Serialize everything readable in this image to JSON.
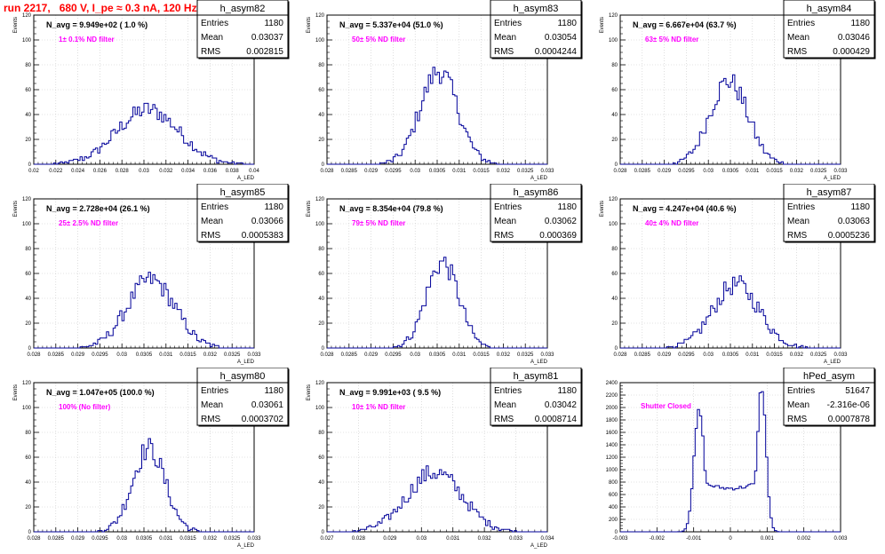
{
  "header": {
    "title": "run 2217,   680 V, I_pe ≈ 0.3 nA, 120 Hz"
  },
  "colors": {
    "title": "#ff0000",
    "histogram": "#000099",
    "annotation": "#ff00ff",
    "grid": "#c8c8c8"
  },
  "chart_data": [
    {
      "type": "histogram",
      "name": "h_asym82",
      "overlay": "N_avg = 9.949e+02 ( 1.0 %)",
      "filter": "1± 0.1% ND filter",
      "stats": {
        "entries": "1180",
        "mean": "0.03037",
        "rms": "0.002815"
      },
      "ylabel": "Events",
      "xlabel": "A_LED",
      "xlim": [
        0.02,
        0.04
      ],
      "ylim": [
        0,
        120
      ],
      "xticks": [
        "0.02",
        "0.022",
        "0.024",
        "0.026",
        "0.028",
        "0.03",
        "0.032",
        "0.034",
        "0.036",
        "0.038",
        "0.04"
      ],
      "yticks": [
        "0",
        "20",
        "40",
        "60",
        "80",
        "100",
        "120"
      ],
      "mean": 0.03037,
      "sigma": 0.0028,
      "peak": 44
    },
    {
      "type": "histogram",
      "name": "h_asym83",
      "overlay": "N_avg = 5.337e+04 (51.0 %)",
      "filter": "50± 5% ND filter",
      "stats": {
        "entries": "1180",
        "mean": "0.03054",
        "rms": "0.0004244"
      },
      "ylabel": "Events",
      "xlabel": "A_LED",
      "xlim": [
        0.028,
        0.033
      ],
      "ylim": [
        0,
        120
      ],
      "xticks": [
        "0.028",
        "0.0285",
        "0.029",
        "0.0295",
        "0.03",
        "0.0305",
        "0.031",
        "0.0315",
        "0.032",
        "0.0325",
        "0.033"
      ],
      "yticks": [
        "0",
        "20",
        "40",
        "60",
        "80",
        "100",
        "120"
      ],
      "mean": 0.03054,
      "sigma": 0.000424,
      "peak": 75
    },
    {
      "type": "histogram",
      "name": "h_asym84",
      "overlay": "N_avg = 6.667e+04 (63.7 %)",
      "filter": "63± 5% ND filter",
      "stats": {
        "entries": "1180",
        "mean": "0.03046",
        "rms": "0.000429"
      },
      "ylabel": "Events",
      "xlabel": "A_LED",
      "xlim": [
        0.028,
        0.033
      ],
      "ylim": [
        0,
        120
      ],
      "xticks": [
        "0.028",
        "0.0285",
        "0.029",
        "0.0295",
        "0.03",
        "0.0305",
        "0.031",
        "0.0315",
        "0.032",
        "0.0325",
        "0.033"
      ],
      "yticks": [
        "0",
        "20",
        "40",
        "60",
        "80",
        "100",
        "120"
      ],
      "mean": 0.03046,
      "sigma": 0.000429,
      "peak": 67
    },
    {
      "type": "histogram",
      "name": "h_asym85",
      "overlay": "N_avg = 2.728e+04 (26.1 %)",
      "filter": "25± 2.5% ND filter",
      "stats": {
        "entries": "1180",
        "mean": "0.03066",
        "rms": "0.0005383"
      },
      "ylabel": "Events",
      "xlabel": "A_LED",
      "xlim": [
        0.028,
        0.033
      ],
      "ylim": [
        0,
        120
      ],
      "xticks": [
        "0.028",
        "0.0285",
        "0.029",
        "0.0295",
        "0.03",
        "0.0305",
        "0.031",
        "0.0315",
        "0.032",
        "0.0325",
        "0.033"
      ],
      "yticks": [
        "0",
        "20",
        "40",
        "60",
        "80",
        "100",
        "120"
      ],
      "mean": 0.03066,
      "sigma": 0.000538,
      "peak": 55
    },
    {
      "type": "histogram",
      "name": "h_asym86",
      "overlay": "N_avg = 8.354e+04 (79.8 %)",
      "filter": "79± 5% ND filter",
      "stats": {
        "entries": "1180",
        "mean": "0.03062",
        "rms": "0.000369"
      },
      "ylabel": "Events",
      "xlabel": "A_LED",
      "xlim": [
        0.028,
        0.033
      ],
      "ylim": [
        0,
        120
      ],
      "xticks": [
        "0.028",
        "0.0285",
        "0.029",
        "0.0295",
        "0.03",
        "0.0305",
        "0.031",
        "0.0315",
        "0.032",
        "0.0325",
        "0.033"
      ],
      "yticks": [
        "0",
        "20",
        "40",
        "60",
        "80",
        "100",
        "120"
      ],
      "mean": 0.03062,
      "sigma": 0.000369,
      "peak": 69
    },
    {
      "type": "histogram",
      "name": "h_asym87",
      "overlay": "N_avg = 4.247e+04 (40.6 %)",
      "filter": "40± 4% ND filter",
      "stats": {
        "entries": "1180",
        "mean": "0.03063",
        "rms": "0.0005236"
      },
      "ylabel": "Events",
      "xlabel": "A_LED",
      "xlim": [
        0.028,
        0.033
      ],
      "ylim": [
        0,
        120
      ],
      "xticks": [
        "0.028",
        "0.0285",
        "0.029",
        "0.0295",
        "0.03",
        "0.0305",
        "0.031",
        "0.0315",
        "0.032",
        "0.0325",
        "0.033"
      ],
      "yticks": [
        "0",
        "20",
        "40",
        "60",
        "80",
        "100",
        "120"
      ],
      "mean": 0.03063,
      "sigma": 0.000524,
      "peak": 51
    },
    {
      "type": "histogram",
      "name": "h_asym80",
      "overlay": "N_avg = 1.047e+05 (100.0 %)",
      "filter": "100% (No filter)",
      "stats": {
        "entries": "1180",
        "mean": "0.03061",
        "rms": "0.0003702"
      },
      "ylabel": "Events",
      "xlabel": "A_LED",
      "xlim": [
        0.028,
        0.033
      ],
      "ylim": [
        0,
        120
      ],
      "xticks": [
        "0.028",
        "0.0285",
        "0.029",
        "0.0295",
        "0.03",
        "0.0305",
        "0.031",
        "0.0315",
        "0.032",
        "0.0325",
        "0.033"
      ],
      "yticks": [
        "0",
        "20",
        "40",
        "60",
        "80",
        "100",
        "120"
      ],
      "mean": 0.03061,
      "sigma": 0.00037,
      "peak": 67
    },
    {
      "type": "histogram",
      "name": "h_asym81",
      "overlay": "N_avg = 9.991e+03 ( 9.5 %)",
      "filter": "10± 1% ND filter",
      "stats": {
        "entries": "1180",
        "mean": "0.03042",
        "rms": "0.0008714"
      },
      "ylabel": "Events",
      "xlabel": "A_LED",
      "xlim": [
        0.027,
        0.034
      ],
      "ylim": [
        0,
        120
      ],
      "xticks": [
        "0.027",
        "0.028",
        "0.029",
        "0.03",
        "0.031",
        "0.032",
        "0.033",
        "0.034"
      ],
      "yticks": [
        "0",
        "20",
        "40",
        "60",
        "80",
        "100",
        "120"
      ],
      "mean": 0.03042,
      "sigma": 0.00087,
      "peak": 48
    },
    {
      "type": "histogram",
      "name": "hPed_asym",
      "overlay": "",
      "filter": "Shutter Closed",
      "stats": {
        "entries": "51647",
        "mean": "-2.316e-06",
        "rms": "0.0007878"
      },
      "ylabel": "",
      "xlabel": "",
      "xlim": [
        -0.003,
        0.003
      ],
      "ylim": [
        0,
        2400
      ],
      "xticks": [
        "-0.003",
        "-0.002",
        "-0.001",
        "0",
        "0.001",
        "0.002",
        "0.003"
      ],
      "yticks": [
        "0",
        "200",
        "400",
        "600",
        "800",
        "1000",
        "1200",
        "1400",
        "1600",
        "1800",
        "2000",
        "2200",
        "2400"
      ],
      "peaks": [
        {
          "x": -0.00085,
          "height": 1950,
          "sigma": 0.00014
        },
        {
          "x": 0.00085,
          "height": 2330,
          "sigma": 0.00012
        }
      ],
      "valley": 700
    }
  ]
}
